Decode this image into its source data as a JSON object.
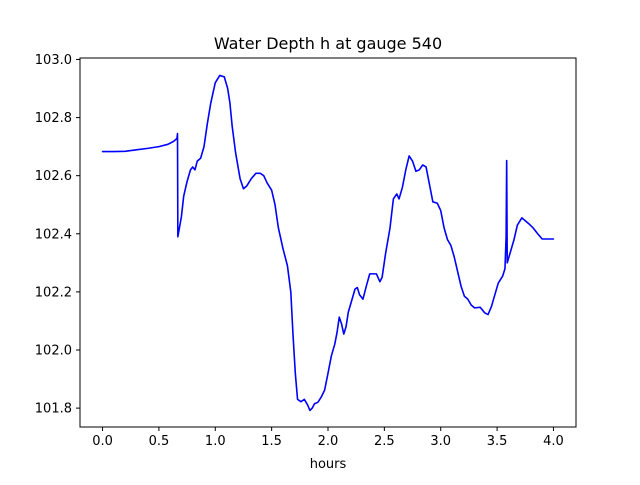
{
  "chart_data": {
    "type": "line",
    "title": "Water Depth h at gauge 540",
    "xlabel": "hours",
    "ylabel": "",
    "xlim": [
      -0.2,
      4.2
    ],
    "ylim": [
      101.735,
      103.005
    ],
    "x_ticks": [
      0.0,
      0.5,
      1.0,
      1.5,
      2.0,
      2.5,
      3.0,
      3.5,
      4.0
    ],
    "x_tick_labels": [
      "0.0",
      "0.5",
      "1.0",
      "1.5",
      "2.0",
      "2.5",
      "3.0",
      "3.5",
      "4.0"
    ],
    "y_ticks": [
      101.8,
      102.0,
      102.2,
      102.4,
      102.6,
      102.8,
      103.0
    ],
    "y_tick_labels": [
      "101.8",
      "102.0",
      "102.2",
      "102.4",
      "102.6",
      "102.8",
      "103.0"
    ],
    "grid": false,
    "series": [
      {
        "color": "#0000ff",
        "points": [
          [
            0.0,
            102.683
          ],
          [
            0.1,
            102.683
          ],
          [
            0.2,
            102.684
          ],
          [
            0.3,
            102.689
          ],
          [
            0.4,
            102.694
          ],
          [
            0.5,
            102.7
          ],
          [
            0.58,
            102.708
          ],
          [
            0.63,
            102.718
          ],
          [
            0.66,
            102.728
          ],
          [
            0.665,
            102.745
          ],
          [
            0.668,
            102.39
          ],
          [
            0.7,
            102.46
          ],
          [
            0.72,
            102.53
          ],
          [
            0.75,
            102.58
          ],
          [
            0.78,
            102.62
          ],
          [
            0.8,
            102.63
          ],
          [
            0.82,
            102.62
          ],
          [
            0.84,
            102.65
          ],
          [
            0.87,
            102.66
          ],
          [
            0.9,
            102.7
          ],
          [
            0.93,
            102.78
          ],
          [
            0.96,
            102.85
          ],
          [
            1.0,
            102.92
          ],
          [
            1.04,
            102.945
          ],
          [
            1.08,
            102.94
          ],
          [
            1.11,
            102.9
          ],
          [
            1.13,
            102.85
          ],
          [
            1.15,
            102.77
          ],
          [
            1.18,
            102.68
          ],
          [
            1.22,
            102.59
          ],
          [
            1.25,
            102.555
          ],
          [
            1.28,
            102.565
          ],
          [
            1.32,
            102.59
          ],
          [
            1.36,
            102.608
          ],
          [
            1.4,
            102.608
          ],
          [
            1.43,
            102.6
          ],
          [
            1.46,
            102.575
          ],
          [
            1.5,
            102.55
          ],
          [
            1.53,
            102.5
          ],
          [
            1.56,
            102.42
          ],
          [
            1.6,
            102.35
          ],
          [
            1.64,
            102.29
          ],
          [
            1.67,
            102.2
          ],
          [
            1.69,
            102.05
          ],
          [
            1.71,
            101.92
          ],
          [
            1.73,
            101.83
          ],
          [
            1.76,
            101.822
          ],
          [
            1.79,
            101.83
          ],
          [
            1.82,
            101.81
          ],
          [
            1.84,
            101.792
          ],
          [
            1.86,
            101.8
          ],
          [
            1.88,
            101.815
          ],
          [
            1.91,
            101.82
          ],
          [
            1.94,
            101.838
          ],
          [
            1.97,
            101.862
          ],
          [
            2.0,
            101.92
          ],
          [
            2.03,
            101.98
          ],
          [
            2.06,
            102.02
          ],
          [
            2.08,
            102.06
          ],
          [
            2.1,
            102.113
          ],
          [
            2.12,
            102.09
          ],
          [
            2.14,
            102.055
          ],
          [
            2.16,
            102.08
          ],
          [
            2.18,
            102.13
          ],
          [
            2.21,
            102.17
          ],
          [
            2.24,
            102.21
          ],
          [
            2.26,
            102.215
          ],
          [
            2.28,
            102.19
          ],
          [
            2.31,
            102.175
          ],
          [
            2.34,
            102.22
          ],
          [
            2.37,
            102.262
          ],
          [
            2.4,
            102.262
          ],
          [
            2.43,
            102.262
          ],
          [
            2.46,
            102.235
          ],
          [
            2.48,
            102.25
          ],
          [
            2.51,
            102.33
          ],
          [
            2.55,
            102.42
          ],
          [
            2.58,
            102.52
          ],
          [
            2.61,
            102.537
          ],
          [
            2.63,
            102.52
          ],
          [
            2.66,
            102.56
          ],
          [
            2.69,
            102.62
          ],
          [
            2.72,
            102.668
          ],
          [
            2.75,
            102.65
          ],
          [
            2.78,
            102.615
          ],
          [
            2.81,
            102.62
          ],
          [
            2.84,
            102.637
          ],
          [
            2.87,
            102.63
          ],
          [
            2.9,
            102.57
          ],
          [
            2.93,
            102.51
          ],
          [
            2.97,
            102.505
          ],
          [
            3.0,
            102.48
          ],
          [
            3.03,
            102.42
          ],
          [
            3.06,
            102.38
          ],
          [
            3.09,
            102.36
          ],
          [
            3.12,
            102.32
          ],
          [
            3.15,
            102.27
          ],
          [
            3.18,
            102.22
          ],
          [
            3.21,
            102.185
          ],
          [
            3.24,
            102.175
          ],
          [
            3.27,
            102.155
          ],
          [
            3.3,
            102.145
          ],
          [
            3.35,
            102.147
          ],
          [
            3.39,
            102.128
          ],
          [
            3.42,
            102.122
          ],
          [
            3.45,
            102.15
          ],
          [
            3.48,
            102.19
          ],
          [
            3.51,
            102.23
          ],
          [
            3.55,
            102.255
          ],
          [
            3.57,
            102.28
          ],
          [
            3.58,
            102.39
          ],
          [
            3.585,
            102.652
          ],
          [
            3.59,
            102.3
          ],
          [
            3.62,
            102.34
          ],
          [
            3.65,
            102.38
          ],
          [
            3.68,
            102.43
          ],
          [
            3.72,
            102.455
          ],
          [
            3.75,
            102.445
          ],
          [
            3.78,
            102.435
          ],
          [
            3.82,
            102.42
          ],
          [
            3.86,
            102.4
          ],
          [
            3.9,
            102.382
          ],
          [
            4.0,
            102.382
          ]
        ]
      }
    ]
  }
}
